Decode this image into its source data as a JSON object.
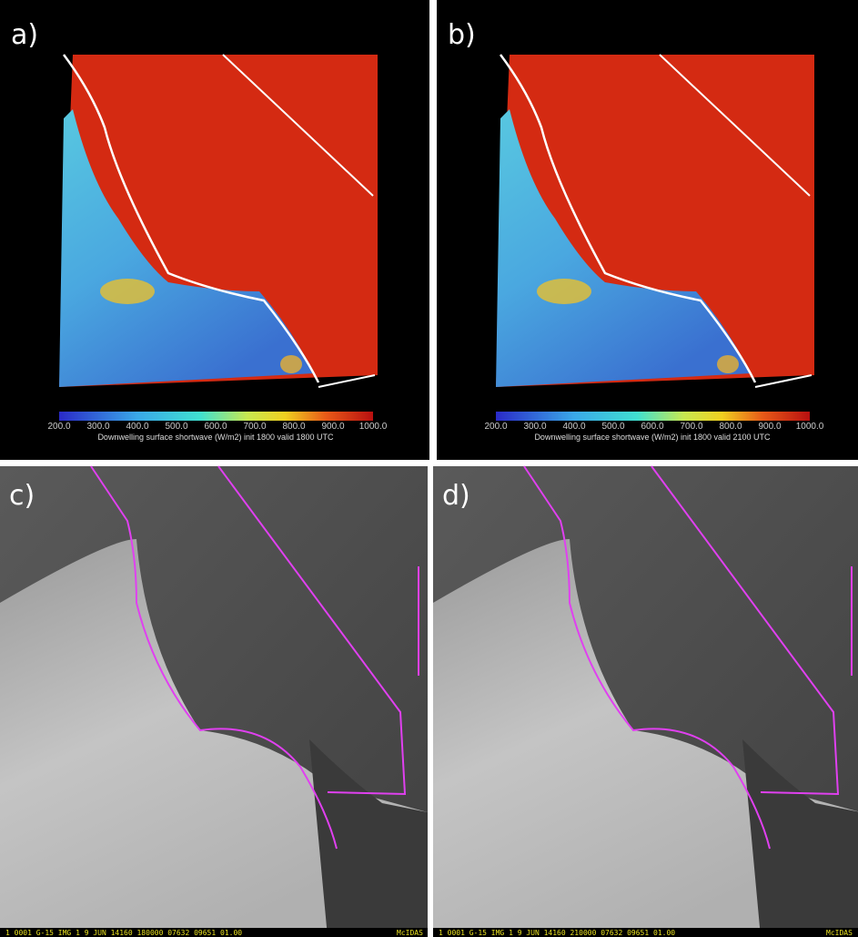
{
  "panels": [
    {
      "label": "a)",
      "colorbar": {
        "ticks": [
          "200.0",
          "300.0",
          "400.0",
          "500.0",
          "600.0",
          "700.0",
          "800.0",
          "900.0",
          "1000.0"
        ],
        "title": "Downwelling surface shortwave (W/m2) init 1800 valid 1800 UTC"
      }
    },
    {
      "label": "b)",
      "colorbar": {
        "ticks": [
          "200.0",
          "300.0",
          "400.0",
          "500.0",
          "600.0",
          "700.0",
          "800.0",
          "900.0",
          "1000.0"
        ],
        "title": "Downwelling surface shortwave (W/m2) init 1800 valid 2100 UTC"
      }
    },
    {
      "label": "c)",
      "footer": "1 0001 G-15 IMG   1  9 JUN 14160 180000 07632 09651 01.00",
      "credit": "McIDAS"
    },
    {
      "label": "d)",
      "footer": "1 0001 G-15 IMG   1  9 JUN 14160 210000 07632 09651 01.00",
      "credit": "McIDAS"
    }
  ]
}
